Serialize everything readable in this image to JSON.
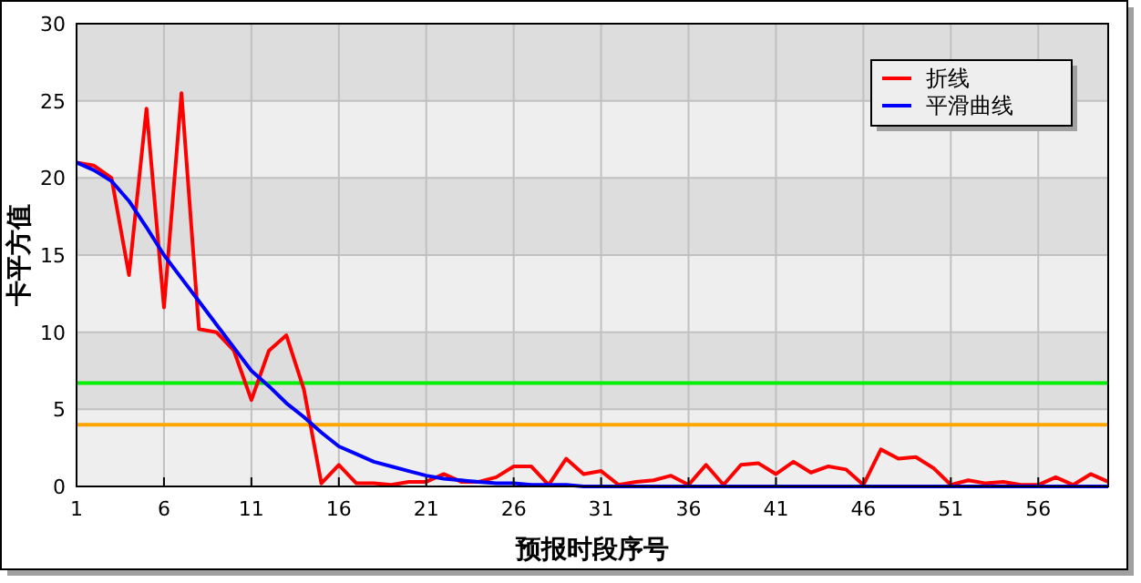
{
  "chart_data": {
    "type": "line",
    "xlabel": "预报时段序号",
    "ylabel": "卡平方值",
    "xlim": [
      1,
      60
    ],
    "xticks": [
      1,
      6,
      11,
      16,
      21,
      26,
      31,
      36,
      41,
      46,
      51,
      56
    ],
    "ylim": [
      0,
      30
    ],
    "yticks": [
      0,
      5,
      10,
      15,
      20,
      25,
      30
    ],
    "grid": true,
    "legend": "top right",
    "line_style": "solid",
    "x": [
      1,
      2,
      3,
      4,
      5,
      6,
      7,
      8,
      9,
      10,
      11,
      12,
      13,
      14,
      15,
      16,
      17,
      18,
      19,
      20,
      21,
      22,
      23,
      24,
      25,
      26,
      27,
      28,
      29,
      30,
      31,
      32,
      33,
      34,
      35,
      36,
      37,
      38,
      39,
      40,
      41,
      42,
      43,
      44,
      45,
      46,
      47,
      48,
      49,
      50,
      51,
      52,
      53,
      54,
      55,
      56,
      57,
      58,
      59,
      60
    ],
    "series": [
      {
        "name": "折线",
        "color": "#ff0000",
        "values": [
          21,
          20.8,
          20,
          13.7,
          24.5,
          11.6,
          25.5,
          10.2,
          10,
          8.8,
          5.6,
          8.8,
          9.8,
          6.3,
          0.2,
          1.4,
          0.2,
          0.2,
          0.1,
          0.3,
          0.3,
          0.8,
          0.3,
          0.3,
          0.6,
          1.3,
          1.3,
          0.1,
          1.8,
          0.8,
          1,
          0.1,
          0.3,
          0.4,
          0.7,
          0.1,
          1.4,
          0.1,
          1.4,
          1.5,
          0.8,
          1.6,
          0.9,
          1.3,
          1.1,
          0.1,
          2.4,
          1.8,
          1.9,
          1.2,
          0.1,
          0.4,
          0.2,
          0.3,
          0.1,
          0.1,
          0.6,
          0.1,
          0.8,
          0.3
        ]
      },
      {
        "name": "平滑曲线",
        "color": "#0000ff",
        "values": [
          21,
          20.5,
          19.8,
          18.5,
          16.8,
          15,
          13.5,
          12,
          10.5,
          9,
          7.5,
          6.5,
          5.4,
          4.5,
          3.5,
          2.6,
          2.1,
          1.6,
          1.3,
          1,
          0.7,
          0.5,
          0.4,
          0.3,
          0.2,
          0.2,
          0.1,
          0.1,
          0.1,
          0,
          0,
          0,
          0,
          0,
          0,
          0,
          0,
          0,
          0,
          0,
          0,
          0,
          0,
          0,
          0,
          0,
          0,
          0,
          0,
          0,
          0,
          0,
          0,
          0,
          0,
          0,
          0,
          0,
          0,
          0
        ]
      }
    ],
    "ref_lines": [
      {
        "axis": "y",
        "value": 6.7,
        "color": "#00ee00"
      },
      {
        "axis": "y",
        "value": 4,
        "color": "#ffa500"
      }
    ]
  }
}
